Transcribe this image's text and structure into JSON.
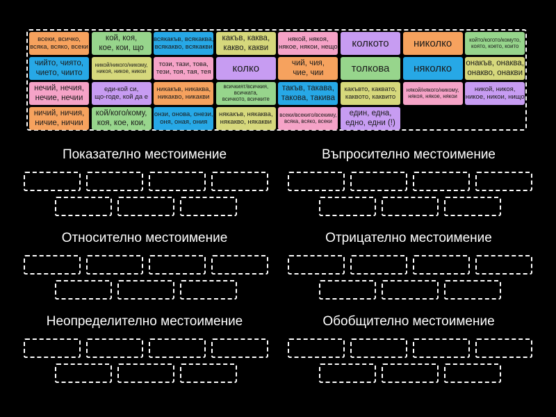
{
  "tiles": [
    {
      "lines": [
        "всеки, всичко,",
        "всяка, всяко, всеки"
      ],
      "color": "#f6a25e"
    },
    {
      "lines": [
        "кой, коя,",
        "кое, кои, що"
      ],
      "color": "#97d58c"
    },
    {
      "lines": [
        "всякакъв, всякаква,",
        "всякакво, всякакви"
      ],
      "color": "#27a8e6"
    },
    {
      "lines": [
        "какъв, каква,",
        "какво, какви"
      ],
      "color": "#d6d87c"
    },
    {
      "lines": [
        "някой, някоя,",
        "някое, някои, нещо"
      ],
      "color": "#f5a3c7"
    },
    {
      "lines": [
        "колкото"
      ],
      "color": "#c79cf2"
    },
    {
      "lines": [
        "николко"
      ],
      "color": "#f6a25e"
    },
    {
      "lines": [
        "който/когото/комуто,",
        "която, което, които"
      ],
      "color": "#97d58c"
    },
    {
      "lines": [
        "чийто, чиято,",
        "чието, чиито"
      ],
      "color": "#27a8e6"
    },
    {
      "lines": [
        "никой/никого/никому,",
        "никоя, никое, никои"
      ],
      "color": "#d6d87c"
    },
    {
      "lines": [
        "този, тази, това,",
        "тези, тоя, тая, тея"
      ],
      "color": "#f5a3c7"
    },
    {
      "lines": [
        "колко"
      ],
      "color": "#c79cf2"
    },
    {
      "lines": [
        "чий, чия,",
        "чие, чии"
      ],
      "color": "#f6a25e"
    },
    {
      "lines": [
        "толкова"
      ],
      "color": "#97d58c"
    },
    {
      "lines": [
        "няколко"
      ],
      "color": "#27a8e6"
    },
    {
      "lines": [
        "онакъв, онаква,",
        "онакво, онакви"
      ],
      "color": "#d6d87c"
    },
    {
      "lines": [
        "нечий, нечия,",
        "нечие, нечии"
      ],
      "color": "#f5a3c7"
    },
    {
      "lines": [
        "еди-кой си,",
        "що-годе, кой да е"
      ],
      "color": "#c79cf2"
    },
    {
      "lines": [
        "никакъв, никаква,",
        "никакво, никакви"
      ],
      "color": "#f6a25e"
    },
    {
      "lines": [
        "всичкият/всичкия,",
        "всичката,",
        "всичкото, всичките"
      ],
      "color": "#97d58c"
    },
    {
      "lines": [
        "такъв, такава,",
        "такова, такива"
      ],
      "color": "#27a8e6"
    },
    {
      "lines": [
        "какъвто, каквато,",
        "каквото, каквито"
      ],
      "color": "#d6d87c"
    },
    {
      "lines": [
        "някой/някого/никому,",
        "някоя, някое, някои"
      ],
      "color": "#f5a3c7"
    },
    {
      "lines": [
        "никой, никоя,",
        "никое, никои, нищо"
      ],
      "color": "#c79cf2"
    },
    {
      "lines": [
        "ничий, ничия,",
        "ничие, ничии"
      ],
      "color": "#f6a25e"
    },
    {
      "lines": [
        "кой/кого/кому,",
        "коя, кое, кои,"
      ],
      "color": "#97d58c"
    },
    {
      "lines": [
        "онзи, онова, онези,",
        "оня, оная, ония"
      ],
      "color": "#27a8e6"
    },
    {
      "lines": [
        "някакъв, някаква,",
        "някакво, някакви"
      ],
      "color": "#d6d87c"
    },
    {
      "lines": [
        "всеки/всекиго/всекиму,",
        "всяка, всяко, всеки"
      ],
      "color": "#f5a3c7"
    },
    {
      "lines": [
        "един, една,",
        "едно, едни (!)"
      ],
      "color": "#c79cf2"
    }
  ],
  "groups": [
    "Показателно местоимение",
    "Въпросително местоимение",
    "Относително местоимение",
    "Отрицателно местоимение",
    "Неопределително местоимение",
    "Обобщително местоимение"
  ]
}
